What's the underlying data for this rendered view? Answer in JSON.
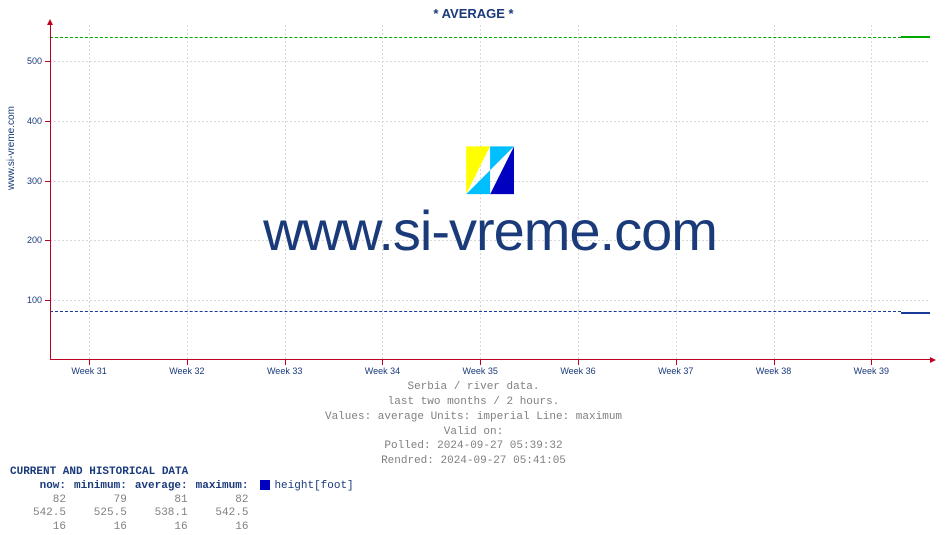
{
  "title": "* AVERAGE *",
  "y_axis_side_label": "www.si-vreme.com",
  "watermark_text": "www.si-vreme.com",
  "watermark_logo_colors": {
    "left": "#ffff00",
    "mid": "#00bfff",
    "right": "#0000c0"
  },
  "plot": {
    "background": "#ffffff",
    "axis_color": "#c00020",
    "grid_color": "#d8d8d8",
    "ylim": [
      0,
      560
    ],
    "y_ticks": [
      100,
      200,
      300,
      400,
      500
    ],
    "x_labels": [
      "Week 31",
      "Week 32",
      "Week 33",
      "Week 34",
      "Week 35",
      "Week 36",
      "Week 37",
      "Week 38",
      "Week 39"
    ],
    "label_fontsize": 9,
    "label_color": "#1a3a7a",
    "series": {
      "green": {
        "color": "#00aa00",
        "dashed_value": 540,
        "solid_from_frac": 0.967,
        "solid_value": 541
      },
      "blue": {
        "color": "#1a3a9a",
        "dashed_value": 82,
        "solid_from_frac": 0.967,
        "solid_value": 80
      }
    }
  },
  "caption": {
    "line1": "Serbia / river data.",
    "line2": "last two months / 2 hours.",
    "line3": "Values: average  Units: imperial  Line: maximum",
    "line4": "Valid on:",
    "line5": "Polled: 2024-09-27 05:39:32",
    "line6": "Rendred: 2024-09-27 05:41:05"
  },
  "data_table": {
    "heading": "CURRENT AND HISTORICAL DATA",
    "columns": [
      "now:",
      "minimum:",
      "average:",
      "maximum:"
    ],
    "series_label": "* AVERAGE *",
    "series_unit": "height[foot]",
    "swatch_color": "#0000c0",
    "rows": [
      [
        "82",
        "79",
        "81",
        "82"
      ],
      [
        "542.5",
        "525.5",
        "538.1",
        "542.5"
      ],
      [
        "16",
        "16",
        "16",
        "16"
      ]
    ]
  }
}
